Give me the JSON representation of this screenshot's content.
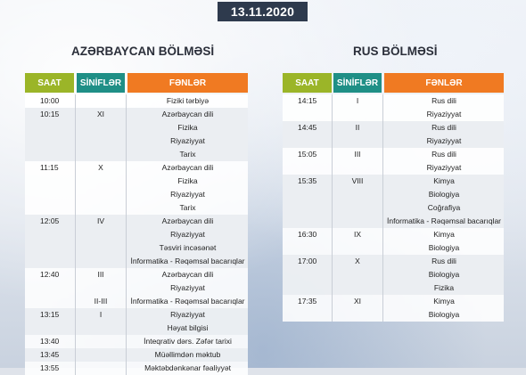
{
  "date": "13.11.2020",
  "az": {
    "title": "AZƏRBAYCAN BÖLMƏSİ",
    "headers": {
      "saat": "SAAT",
      "sinif": "SİNİFLƏR",
      "fenn": "FƏNLƏR"
    },
    "rows": [
      {
        "saat": "10:00",
        "sinif": "",
        "fenn": "Fiziki tərbiyə"
      },
      {
        "saat": "10:15",
        "sinif": "XI",
        "fenn": "Azərbaycan dili"
      },
      {
        "saat": "",
        "sinif": "",
        "fenn": "Fizika"
      },
      {
        "saat": "",
        "sinif": "",
        "fenn": "Riyaziyyat"
      },
      {
        "saat": "",
        "sinif": "",
        "fenn": "Tarix"
      },
      {
        "saat": "11:15",
        "sinif": "X",
        "fenn": "Azərbaycan dili"
      },
      {
        "saat": "",
        "sinif": "",
        "fenn": "Fizika"
      },
      {
        "saat": "",
        "sinif": "",
        "fenn": "Riyaziyyat"
      },
      {
        "saat": "",
        "sinif": "",
        "fenn": "Tarix"
      },
      {
        "saat": "12:05",
        "sinif": "IV",
        "fenn": "Azərbaycan dili"
      },
      {
        "saat": "",
        "sinif": "",
        "fenn": "Riyaziyyat"
      },
      {
        "saat": "",
        "sinif": "",
        "fenn": "Təsviri incəsənət"
      },
      {
        "saat": "",
        "sinif": "",
        "fenn": "İnformatika - Rəqəmsal bacarıqlar"
      },
      {
        "saat": "12:40",
        "sinif": "III",
        "fenn": "Azərbaycan dili"
      },
      {
        "saat": "",
        "sinif": "",
        "fenn": "Riyaziyyat"
      },
      {
        "saat": "",
        "sinif": "II-III",
        "fenn": "İnformatika - Rəqəmsal bacarıqlar"
      },
      {
        "saat": "13:15",
        "sinif": "I",
        "fenn": "Riyaziyyat"
      },
      {
        "saat": "",
        "sinif": "",
        "fenn": "Həyat bilgisi"
      },
      {
        "saat": "13:40",
        "sinif": "",
        "fenn": "İnteqrativ dərs. Zəfər tarixi"
      },
      {
        "saat": "13:45",
        "sinif": "",
        "fenn": "Müəllimdən məktub"
      },
      {
        "saat": "13:55",
        "sinif": "",
        "fenn": "Məktəbdənkənar fəaliyyət"
      }
    ]
  },
  "ru": {
    "title": "RUS BÖLMƏSİ",
    "headers": {
      "saat": "SAAT",
      "sinif": "SİNİFLƏR",
      "fenn": "FƏNLƏR"
    },
    "rows": [
      {
        "saat": "14:15",
        "sinif": "I",
        "fenn": "Rus dili"
      },
      {
        "saat": "",
        "sinif": "",
        "fenn": "Riyaziyyat"
      },
      {
        "saat": "14:45",
        "sinif": "II",
        "fenn": "Rus dili"
      },
      {
        "saat": "",
        "sinif": "",
        "fenn": "Riyaziyyat"
      },
      {
        "saat": "15:05",
        "sinif": "III",
        "fenn": "Rus dili"
      },
      {
        "saat": "",
        "sinif": "",
        "fenn": "Riyaziyyat"
      },
      {
        "saat": "15:35",
        "sinif": "VIII",
        "fenn": "Kimya"
      },
      {
        "saat": "",
        "sinif": "",
        "fenn": "Biologiya"
      },
      {
        "saat": "",
        "sinif": "",
        "fenn": "Coğrafiya"
      },
      {
        "saat": "",
        "sinif": "",
        "fenn": "İnformatika - Rəqəmsal bacarıqlar"
      },
      {
        "saat": "16:30",
        "sinif": "IX",
        "fenn": "Kimya"
      },
      {
        "saat": "",
        "sinif": "",
        "fenn": "Biologiya"
      },
      {
        "saat": "17:00",
        "sinif": "X",
        "fenn": "Rus dili"
      },
      {
        "saat": "",
        "sinif": "",
        "fenn": "Biologiya"
      },
      {
        "saat": "",
        "sinif": "",
        "fenn": "Fizika"
      },
      {
        "saat": "17:35",
        "sinif": "XI",
        "fenn": "Kimya"
      },
      {
        "saat": "",
        "sinif": "",
        "fenn": "Biologiya"
      }
    ]
  }
}
